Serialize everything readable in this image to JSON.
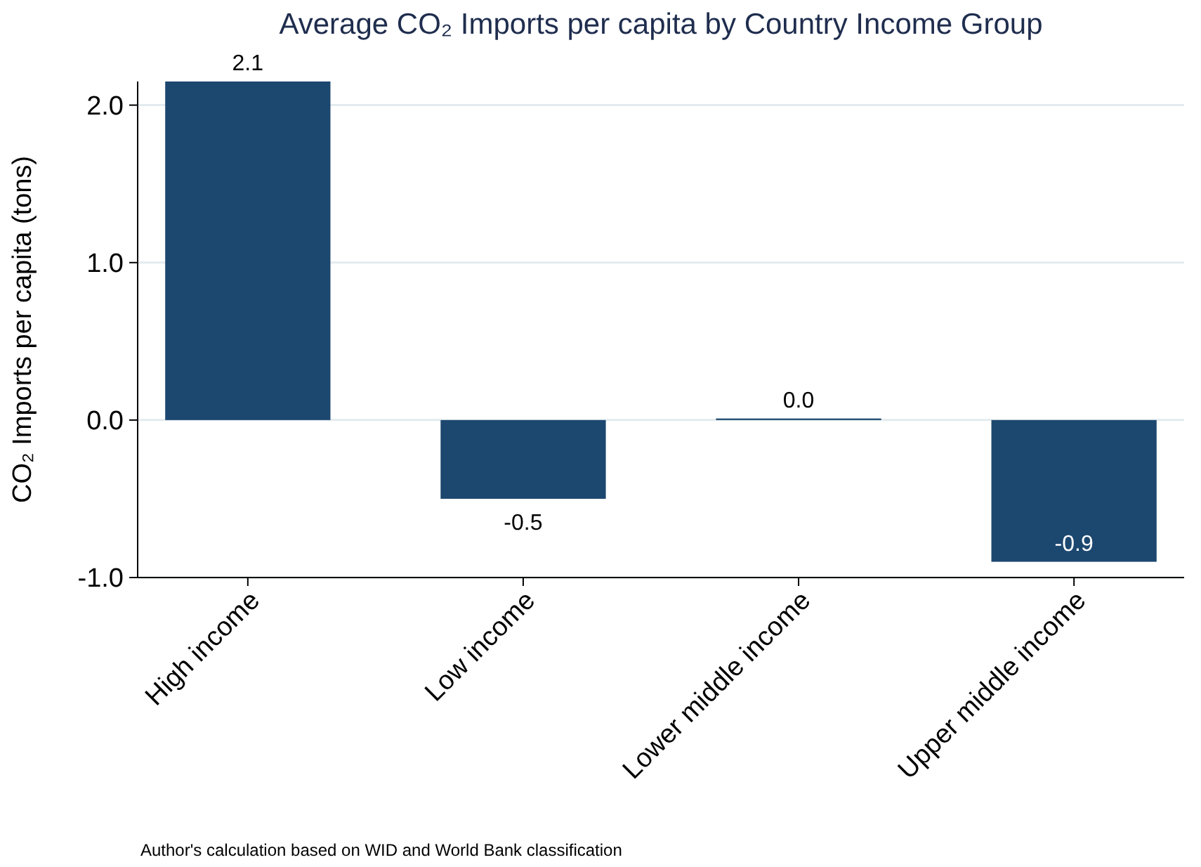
{
  "chart_data": {
    "type": "bar",
    "title": "Average CO₂ Imports per capita by Country Income Group",
    "ylabel": "CO₂ Imports per capita (tons)",
    "categories": [
      "High income",
      "Low income",
      "Lower middle income",
      "Upper middle income"
    ],
    "values": [
      2.15,
      -0.5,
      0.01,
      -0.9
    ],
    "value_labels": [
      "2.1",
      "-0.5",
      "0.0",
      "-0.9"
    ],
    "color": "#1c476f",
    "ylim": [
      -1,
      2.15
    ],
    "yticks": [
      {
        "value": -1,
        "label": "-1.0"
      },
      {
        "value": 0,
        "label": "0.0"
      },
      {
        "value": 1,
        "label": "1.0"
      },
      {
        "value": 2,
        "label": "2.0"
      }
    ],
    "grid": "y",
    "annotations": [
      "Author's calculation based on WID and World Bank classification"
    ]
  }
}
